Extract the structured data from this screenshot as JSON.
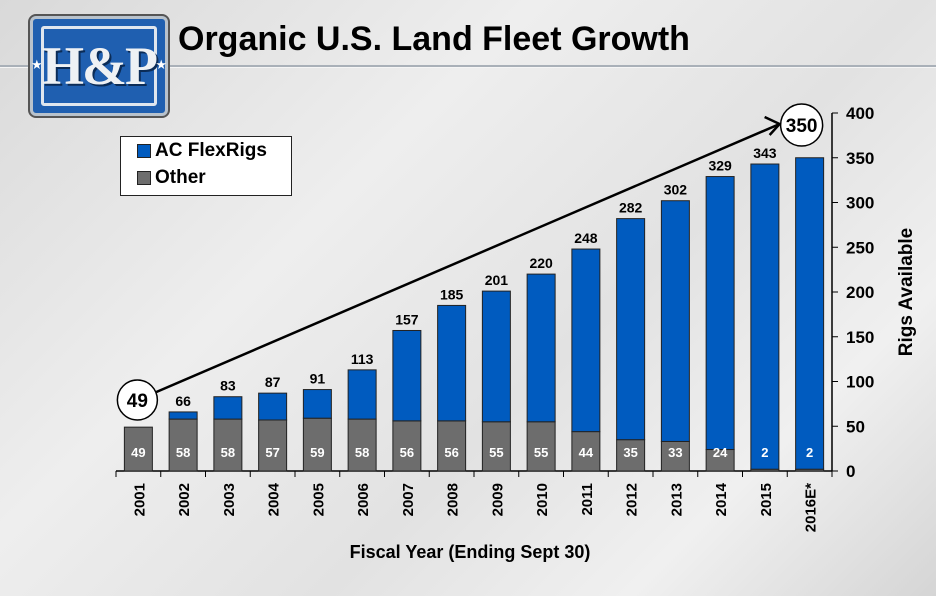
{
  "header": {
    "title": "Organic U.S. Land Fleet Growth",
    "logo_text": "H&P Inc"
  },
  "chart_data": {
    "type": "bar",
    "stacked": true,
    "title": "Organic U.S. Land Fleet Growth",
    "xlabel": "Fiscal Year (Ending Sept 30)",
    "ylabel": "Rigs Available",
    "ylim": [
      0,
      400
    ],
    "yticks": [
      0,
      50,
      100,
      150,
      200,
      250,
      300,
      350,
      400
    ],
    "y_axis_side": "right",
    "grid": false,
    "legend_position": "top-left",
    "categories": [
      "2001",
      "2002",
      "2003",
      "2004",
      "2005",
      "2006",
      "2007",
      "2008",
      "2009",
      "2010",
      "2011",
      "2012",
      "2013",
      "2014",
      "2015",
      "2016E*"
    ],
    "series": [
      {
        "name": "Other",
        "color": "#6d6d6d",
        "values": [
          49,
          58,
          58,
          57,
          59,
          58,
          56,
          56,
          55,
          55,
          44,
          35,
          33,
          24,
          2,
          2
        ]
      },
      {
        "name": "AC FlexRigs",
        "color": "#005bbf",
        "values": [
          0,
          8,
          25,
          30,
          32,
          55,
          101,
          129,
          146,
          165,
          204,
          247,
          269,
          305,
          341,
          348
        ]
      }
    ],
    "totals": [
      49,
      66,
      83,
      87,
      91,
      113,
      157,
      185,
      201,
      220,
      248,
      282,
      302,
      329,
      343,
      350
    ],
    "annotations": {
      "start": "49",
      "end": "350"
    }
  }
}
